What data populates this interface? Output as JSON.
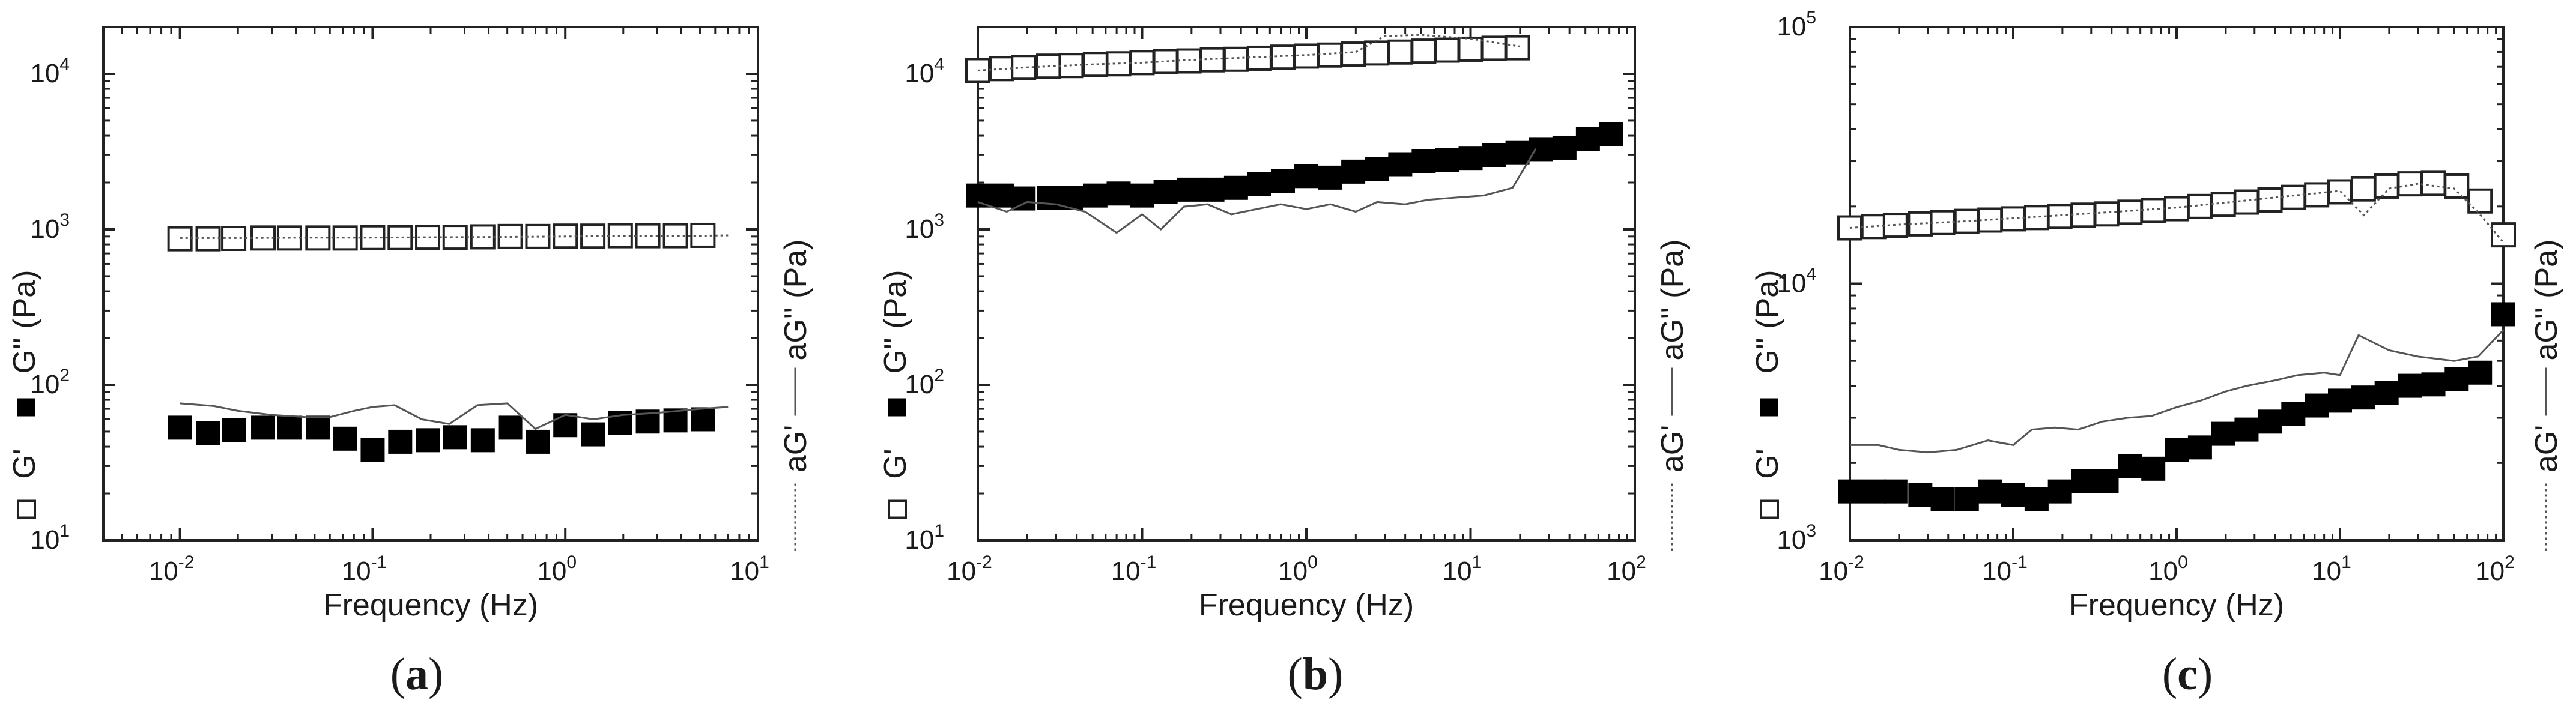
{
  "chart_data": [
    {
      "type": "scatter",
      "panel": "a",
      "caption_open": "(",
      "caption_letter": "a",
      "caption_close": ")",
      "xlabel": "Frequency (Hz)",
      "ylabel_left": "G'' (Pa)",
      "legend_left": [
        "G'",
        "G''"
      ],
      "ylabel_right": "aG'' (Pa)",
      "legend_right": [
        "aG'",
        "aG''"
      ],
      "xscale": "log",
      "yscale": "log",
      "xlim": [
        0.004,
        10
      ],
      "ylim": [
        10,
        20000
      ],
      "x_ticks": [
        {
          "base": "10",
          "exp": "-2"
        },
        {
          "base": "10",
          "exp": "-1"
        },
        {
          "base": "10",
          "exp": "0"
        },
        {
          "base": "10",
          "exp": "1"
        }
      ],
      "x_tick_values": [
        0.01,
        0.1,
        1,
        10
      ],
      "y_ticks": [
        {
          "base": "10",
          "exp": "1"
        },
        {
          "base": "10",
          "exp": "2"
        },
        {
          "base": "10",
          "exp": "3"
        },
        {
          "base": "10",
          "exp": "4"
        }
      ],
      "y_tick_values": [
        10,
        100,
        1000,
        10000
      ],
      "series": [
        {
          "name": "G'",
          "style": "open-square",
          "x": [
            0.01,
            0.014,
            0.019,
            0.027,
            0.037,
            0.052,
            0.072,
            0.1,
            0.139,
            0.193,
            0.268,
            0.373,
            0.518,
            0.72,
            1.0,
            1.39,
            1.93,
            2.68,
            3.73,
            5.18
          ],
          "y": [
            870,
            870,
            875,
            880,
            880,
            880,
            880,
            885,
            885,
            890,
            890,
            895,
            900,
            900,
            905,
            905,
            910,
            910,
            910,
            915
          ]
        },
        {
          "name": "G''",
          "style": "filled-square",
          "x": [
            0.01,
            0.014,
            0.019,
            0.027,
            0.037,
            0.052,
            0.072,
            0.1,
            0.139,
            0.193,
            0.268,
            0.373,
            0.518,
            0.72,
            1.0,
            1.39,
            1.93,
            2.68,
            3.73,
            5.18
          ],
          "y": [
            53,
            49,
            51,
            53,
            53,
            53,
            45,
            38,
            43,
            44,
            46,
            44,
            53,
            43,
            55,
            48,
            57,
            58,
            59,
            60
          ]
        },
        {
          "name": "aG'",
          "style": "dotted-line",
          "x": [
            0.01,
            0.02,
            0.05,
            0.1,
            0.2,
            0.5,
            1,
            2,
            5,
            7
          ],
          "y": [
            880,
            880,
            885,
            885,
            890,
            895,
            900,
            905,
            910,
            915
          ]
        },
        {
          "name": "aG''",
          "style": "solid-line",
          "x": [
            0.01,
            0.015,
            0.02,
            0.03,
            0.045,
            0.06,
            0.08,
            0.1,
            0.13,
            0.18,
            0.25,
            0.35,
            0.5,
            0.7,
            1.0,
            1.4,
            2.0,
            3.0,
            5.0,
            7.0
          ],
          "y": [
            76,
            73,
            68,
            64,
            62,
            62,
            68,
            72,
            74,
            60,
            56,
            74,
            76,
            52,
            64,
            60,
            64,
            66,
            70,
            72
          ]
        }
      ]
    },
    {
      "type": "scatter",
      "panel": "b",
      "caption_open": "(",
      "caption_letter": "b",
      "caption_close": ")",
      "xlabel": "Frequency (Hz)",
      "ylabel_left": "G'' (Pa)",
      "legend_left": [
        "G'",
        "G''"
      ],
      "ylabel_right": "aG'' (Pa)",
      "legend_right": [
        "aG'",
        "aG''"
      ],
      "xscale": "log",
      "yscale": "log",
      "xlim": [
        0.01,
        100
      ],
      "ylim": [
        10,
        20000
      ],
      "x_ticks": [
        {
          "base": "10",
          "exp": "-2"
        },
        {
          "base": "10",
          "exp": "-1"
        },
        {
          "base": "10",
          "exp": "0"
        },
        {
          "base": "10",
          "exp": "1"
        },
        {
          "base": "10",
          "exp": "2"
        }
      ],
      "x_tick_values": [
        0.01,
        0.1,
        1,
        10,
        100
      ],
      "y_ticks": [
        {
          "base": "10",
          "exp": "1"
        },
        {
          "base": "10",
          "exp": "2"
        },
        {
          "base": "10",
          "exp": "3"
        },
        {
          "base": "10",
          "exp": "4"
        }
      ],
      "y_tick_values": [
        10,
        100,
        1000,
        10000
      ],
      "series": [
        {
          "name": "G'",
          "style": "open-square",
          "x": [
            0.01,
            0.014,
            0.019,
            0.027,
            0.037,
            0.052,
            0.072,
            0.1,
            0.139,
            0.193,
            0.268,
            0.373,
            0.518,
            0.72,
            1.0,
            1.39,
            1.93,
            2.68,
            3.73,
            5.18,
            7.2,
            10,
            13.9,
            19.3
          ],
          "y": [
            10500,
            10800,
            11000,
            11200,
            11300,
            11500,
            11600,
            11800,
            12000,
            12100,
            12300,
            12400,
            12600,
            12800,
            13000,
            13200,
            13400,
            13600,
            13800,
            14000,
            14200,
            14400,
            14600,
            14700
          ]
        },
        {
          "name": "G''",
          "style": "filled-square",
          "x": [
            0.01,
            0.014,
            0.019,
            0.027,
            0.037,
            0.052,
            0.072,
            0.1,
            0.139,
            0.193,
            0.268,
            0.373,
            0.518,
            0.72,
            1.0,
            1.39,
            1.93,
            2.68,
            3.73,
            5.18,
            7.2,
            10,
            13.9,
            19.3,
            26.8,
            37.3,
            51.8,
            72
          ],
          "y": [
            1650,
            1650,
            1580,
            1600,
            1600,
            1650,
            1700,
            1650,
            1750,
            1800,
            1800,
            1850,
            1950,
            2050,
            2200,
            2150,
            2350,
            2450,
            2600,
            2750,
            2800,
            2850,
            3000,
            3100,
            3250,
            3350,
            3800,
            4100
          ]
        },
        {
          "name": "aG'",
          "style": "dotted-line",
          "x": [
            0.01,
            0.02,
            0.05,
            0.1,
            0.2,
            0.5,
            1,
            2,
            3,
            5,
            10,
            20
          ],
          "y": [
            10500,
            11000,
            11500,
            11800,
            12300,
            12800,
            13200,
            13800,
            17500,
            17800,
            16800,
            15000
          ]
        },
        {
          "name": "aG''",
          "style": "solid-line",
          "x": [
            0.01,
            0.015,
            0.02,
            0.03,
            0.045,
            0.07,
            0.1,
            0.13,
            0.18,
            0.25,
            0.35,
            0.5,
            0.7,
            1.0,
            1.4,
            2.0,
            2.7,
            4.0,
            5.5,
            8,
            12,
            18,
            25
          ],
          "y": [
            1500,
            1300,
            1500,
            1450,
            1300,
            950,
            1250,
            1000,
            1400,
            1450,
            1250,
            1350,
            1450,
            1350,
            1450,
            1300,
            1500,
            1450,
            1550,
            1600,
            1650,
            1850,
            3300
          ]
        }
      ]
    },
    {
      "type": "scatter",
      "panel": "c",
      "caption_open": "(",
      "caption_letter": "c",
      "caption_close": ")",
      "xlabel": "Frequency (Hz)",
      "ylabel_left": "G'' (Pa)",
      "legend_left": [
        "G'",
        "G''"
      ],
      "ylabel_right": "aG'' (Pa)",
      "legend_right": [
        "aG'",
        "aG''"
      ],
      "xscale": "log",
      "yscale": "log",
      "xlim": [
        0.01,
        100
      ],
      "ylim": [
        1000,
        100000
      ],
      "x_ticks": [
        {
          "base": "10",
          "exp": "-2"
        },
        {
          "base": "10",
          "exp": "-1"
        },
        {
          "base": "10",
          "exp": "0"
        },
        {
          "base": "10",
          "exp": "1"
        },
        {
          "base": "10",
          "exp": "2"
        }
      ],
      "x_tick_values": [
        0.01,
        0.1,
        1,
        10,
        100
      ],
      "y_ticks": [
        {
          "base": "10",
          "exp": "3"
        },
        {
          "base": "10",
          "exp": "4"
        },
        {
          "base": "10",
          "exp": "5"
        }
      ],
      "y_tick_values": [
        1000,
        10000,
        100000
      ],
      "series": [
        {
          "name": "G'",
          "style": "open-square",
          "x": [
            0.01,
            0.014,
            0.019,
            0.027,
            0.037,
            0.052,
            0.072,
            0.1,
            0.139,
            0.193,
            0.268,
            0.373,
            0.518,
            0.72,
            1.0,
            1.39,
            1.93,
            2.68,
            3.73,
            5.18,
            7.2,
            10,
            13.9,
            19.3,
            26.8,
            37.3,
            51.8,
            72,
            100
          ],
          "y": [
            16500,
            16700,
            16900,
            17100,
            17300,
            17500,
            17700,
            17900,
            18100,
            18300,
            18500,
            18700,
            19000,
            19300,
            19600,
            20000,
            20400,
            20800,
            21200,
            21700,
            22200,
            22800,
            23400,
            24000,
            24500,
            24600,
            24000,
            21000,
            15500
          ]
        },
        {
          "name": "G''",
          "style": "filled-square",
          "x": [
            0.01,
            0.014,
            0.019,
            0.027,
            0.037,
            0.052,
            0.072,
            0.1,
            0.139,
            0.193,
            0.268,
            0.373,
            0.518,
            0.72,
            1.0,
            1.39,
            1.93,
            2.68,
            3.73,
            5.18,
            7.2,
            10,
            13.9,
            19.3,
            26.8,
            37.3,
            51.8,
            72,
            100
          ],
          "y": [
            1550,
            1550,
            1550,
            1500,
            1450,
            1450,
            1550,
            1500,
            1450,
            1550,
            1700,
            1700,
            1950,
            1900,
            2250,
            2300,
            2600,
            2700,
            2900,
            3100,
            3350,
            3500,
            3600,
            3750,
            4000,
            4050,
            4250,
            4500,
            7600
          ]
        },
        {
          "name": "aG'",
          "style": "dotted-line",
          "x": [
            0.01,
            0.02,
            0.05,
            0.1,
            0.2,
            0.5,
            1,
            2,
            5,
            10,
            14,
            20,
            30,
            50,
            70,
            100
          ],
          "y": [
            16500,
            17000,
            17500,
            18000,
            18500,
            19200,
            19800,
            20700,
            22000,
            23000,
            18500,
            23500,
            24500,
            23500,
            19000,
            14500
          ]
        },
        {
          "name": "aG''",
          "style": "solid-line",
          "x": [
            0.01,
            0.015,
            0.02,
            0.03,
            0.045,
            0.07,
            0.1,
            0.13,
            0.18,
            0.25,
            0.35,
            0.5,
            0.7,
            1.0,
            1.4,
            2.0,
            2.7,
            4.0,
            5.5,
            8,
            10,
            13,
            20,
            30,
            50,
            70,
            100
          ],
          "y": [
            2350,
            2350,
            2250,
            2200,
            2250,
            2450,
            2350,
            2700,
            2750,
            2700,
            2900,
            3000,
            3050,
            3300,
            3500,
            3800,
            4000,
            4200,
            4400,
            4500,
            4400,
            6300,
            5500,
            5200,
            5000,
            5200,
            6600
          ]
        }
      ]
    }
  ]
}
